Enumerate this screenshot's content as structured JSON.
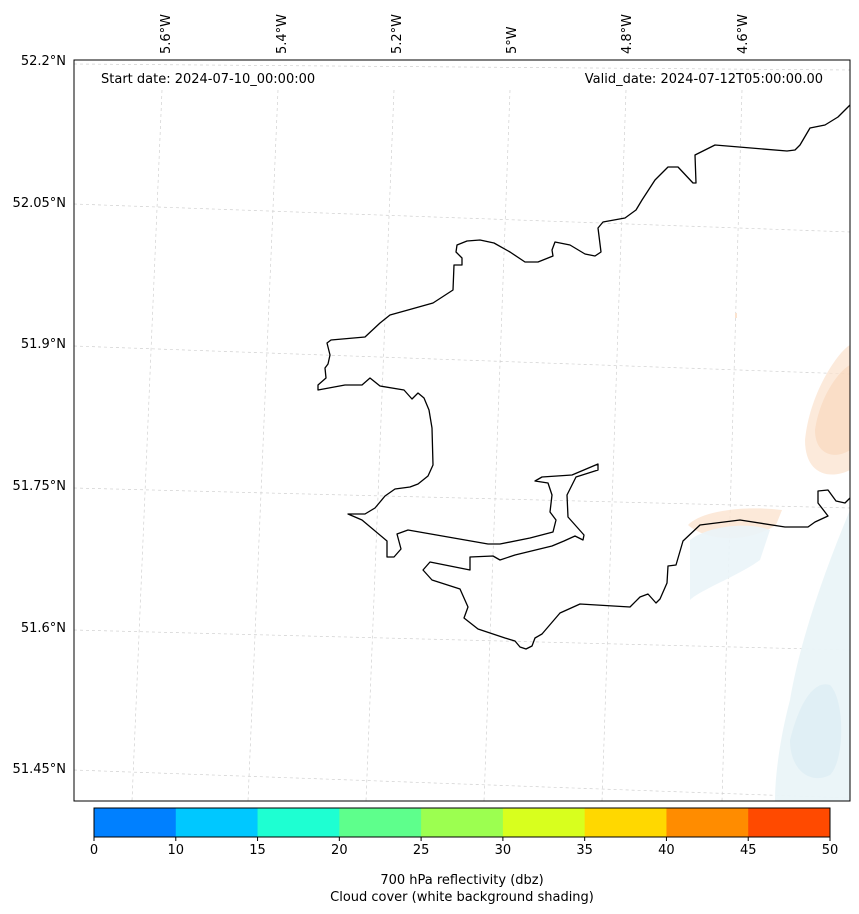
{
  "map": {
    "start_label": "Start date: 2024-07-10_00:00:00",
    "valid_label": "Valid_date: 2024-07-12T05:00:00.00",
    "lon_labels": [
      "5.6°W",
      "5.4°W",
      "5.2°W",
      "5°W",
      "4.8°W",
      "4.6°W"
    ],
    "lat_labels": [
      "52.2°N",
      "52.05°N",
      "51.9°N",
      "51.75°N",
      "51.6°N",
      "51.45°N"
    ]
  },
  "colorbar": {
    "ticks": [
      "0",
      "10",
      "15",
      "20",
      "25",
      "30",
      "35",
      "40",
      "45",
      "50"
    ],
    "colors": [
      "#0080ff",
      "#00c8ff",
      "#1effd2",
      "#5eff8c",
      "#9cff50",
      "#d8ff1e",
      "#ffd800",
      "#ff8c00",
      "#ff4a00"
    ],
    "label_line1": "700 hPa reflectivity (dbz)",
    "label_line2": "Cloud cover (white background shading)"
  }
}
